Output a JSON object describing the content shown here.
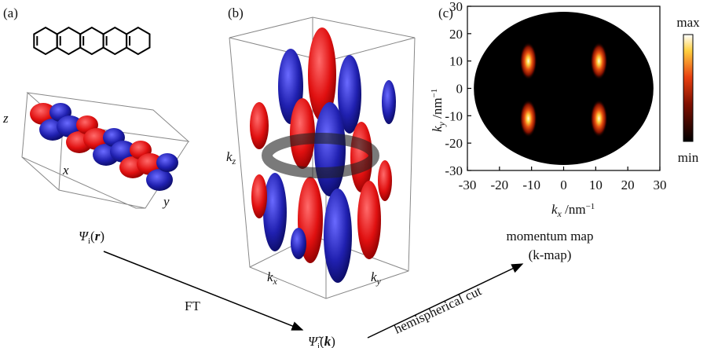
{
  "panels": {
    "a": "(a)",
    "b": "(b)",
    "c": "(c)"
  },
  "panel_a": {
    "axes": {
      "z": "z",
      "x": "x",
      "y": "y"
    }
  },
  "panel_b": {
    "kz": {
      "symbol": "k",
      "sub": "z"
    },
    "kx": {
      "symbol": "k",
      "sub": "x"
    },
    "ky": {
      "symbol": "k",
      "sub": "y"
    }
  },
  "flow": {
    "real_space": {
      "symbol": "Ψ",
      "sub": "i",
      "open": "(",
      "arg": "r",
      "close": ")"
    },
    "transform": "FT",
    "momentum_space": {
      "symbol": "Ψ̃",
      "sub": "i",
      "open": "(",
      "arg": "k",
      "close": ")"
    },
    "cut": "hemispherical cut",
    "result": [
      "momentum map",
      "(k-map)"
    ]
  },
  "chart_data": {
    "type": "heatmap",
    "x_label": {
      "symbol": "k",
      "sub": "x",
      "unit": " /nm",
      "exp": "−1"
    },
    "y_label": {
      "symbol": "k",
      "sub": "y",
      "unit": " /nm",
      "exp": "−1"
    },
    "xlim": [
      -30,
      30
    ],
    "ylim": [
      -30,
      30
    ],
    "xticks": [
      -30,
      -20,
      -10,
      0,
      10,
      20,
      30
    ],
    "yticks": [
      -30,
      -20,
      -10,
      0,
      10,
      20,
      30
    ],
    "disc_radius": 28,
    "hot_spots": {
      "kx": [
        -11,
        11,
        -11,
        11
      ],
      "ky": [
        10,
        10,
        -11,
        -11
      ]
    },
    "colorbar": {
      "max": "max",
      "min": "min"
    }
  }
}
